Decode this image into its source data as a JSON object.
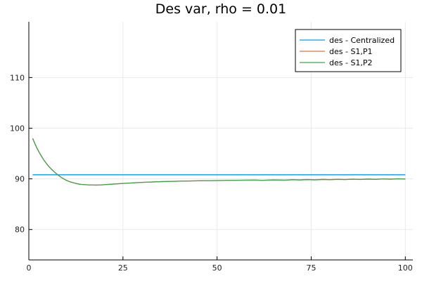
{
  "chart_data": {
    "type": "line",
    "title": "Des var, rho = 0.01",
    "xlabel": "",
    "ylabel": "",
    "xlim": [
      0,
      102
    ],
    "ylim": [
      74,
      121
    ],
    "xticks": [
      0,
      25,
      50,
      75,
      100
    ],
    "yticks": [
      80,
      90,
      100,
      110
    ],
    "grid": true,
    "legend_position": "top-right",
    "series": [
      {
        "name": "des - Centralized",
        "color": "#009AF9",
        "x": [
          1,
          100
        ],
        "y": [
          90.8,
          90.8
        ]
      },
      {
        "name": "des - S1,P1",
        "color": "#E26F46",
        "x": [
          1,
          2,
          3,
          4,
          5,
          6,
          7,
          8,
          9,
          10,
          11,
          12,
          13,
          14,
          15,
          16,
          17,
          18,
          19,
          20,
          22,
          25,
          30,
          35,
          40,
          45,
          50,
          55,
          60,
          62,
          65,
          68,
          70,
          72,
          74,
          76,
          78,
          80,
          82,
          84,
          86,
          88,
          90,
          92,
          94,
          96,
          98,
          100
        ],
        "y": [
          98.0,
          96.3,
          94.9,
          93.7,
          92.7,
          91.9,
          91.2,
          90.6,
          90.1,
          89.7,
          89.4,
          89.2,
          89.0,
          88.9,
          88.85,
          88.8,
          88.78,
          88.77,
          88.8,
          88.85,
          88.95,
          89.1,
          89.3,
          89.45,
          89.55,
          89.62,
          89.67,
          89.72,
          89.77,
          89.7,
          89.8,
          89.75,
          89.85,
          89.8,
          89.88,
          89.82,
          89.9,
          89.85,
          89.92,
          89.87,
          89.95,
          89.9,
          89.97,
          89.92,
          90.0,
          89.95,
          90.02,
          89.98
        ]
      },
      {
        "name": "des - S1,P2",
        "color": "#3DA44D",
        "x": [
          1,
          2,
          3,
          4,
          5,
          6,
          7,
          8,
          9,
          10,
          11,
          12,
          13,
          14,
          15,
          16,
          17,
          18,
          19,
          20,
          22,
          25,
          30,
          35,
          40,
          45,
          50,
          55,
          60,
          62,
          65,
          68,
          70,
          72,
          74,
          76,
          78,
          80,
          82,
          84,
          86,
          88,
          90,
          92,
          94,
          96,
          98,
          100
        ],
        "y": [
          98.0,
          96.3,
          94.9,
          93.7,
          92.7,
          91.9,
          91.2,
          90.6,
          90.1,
          89.7,
          89.4,
          89.2,
          89.0,
          88.9,
          88.85,
          88.8,
          88.78,
          88.77,
          88.8,
          88.85,
          88.95,
          89.1,
          89.3,
          89.45,
          89.55,
          89.62,
          89.67,
          89.72,
          89.75,
          89.72,
          89.78,
          89.73,
          89.82,
          89.78,
          89.85,
          89.8,
          89.88,
          89.84,
          89.9,
          89.86,
          89.93,
          89.88,
          89.95,
          89.9,
          89.98,
          89.93,
          90.0,
          89.97
        ]
      }
    ]
  }
}
